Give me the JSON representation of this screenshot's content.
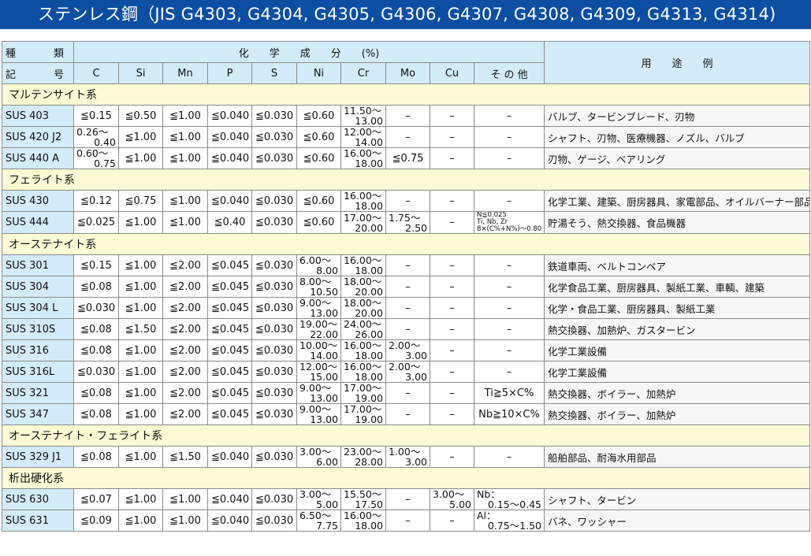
{
  "title": "ステンレス鋼（JIS G4303, G4304, G4305, G4306, G4307, G4308, G4309, G4313, G4314)",
  "header": {
    "grade_top": [
      "種",
      "類"
    ],
    "grade_bottom": [
      "記",
      "号"
    ],
    "chem": "化　　学　　成　　分　　(%)",
    "use": "用　　途　　例",
    "elements": [
      "C",
      "Si",
      "Mn",
      "P",
      "S",
      "Ni",
      "Cr",
      "Mo",
      "Cu",
      "そ の 他"
    ]
  },
  "colors": {
    "title_bg": "#0b4ea2",
    "header_bg": "#d3ecf9",
    "group_bg": "#fdfad6"
  },
  "groups": [
    {
      "name": "マルテンサイト系",
      "rows": [
        {
          "grade": "SUS 403",
          "vals": [
            "≦0.15",
            "≦0.50",
            "≦1.00",
            "≦0.040",
            "≦0.030",
            "≦0.60",
            [
              "11.50～",
              "13.00"
            ],
            "–",
            "–",
            "–"
          ],
          "use": "バルブ、タービンブレード、刃物"
        },
        {
          "grade": "SUS 420 J2",
          "vals": [
            [
              "0.26～",
              "0.40"
            ],
            "≦1.00",
            "≦1.00",
            "≦0.040",
            "≦0.030",
            "≦0.60",
            [
              "12.00～",
              "14.00"
            ],
            "–",
            "–",
            "–"
          ],
          "use": "シャフト、刃物、医療機器、ノズル、バルブ"
        },
        {
          "grade": "SUS 440 A",
          "vals": [
            [
              "0.60～",
              "0.75"
            ],
            "≦1.00",
            "≦1.00",
            "≦0.040",
            "≦0.030",
            "≦0.60",
            [
              "16.00～",
              "18.00"
            ],
            "≦0.75",
            "–",
            "–"
          ],
          "use": "刃物、ゲージ、ベアリング"
        }
      ]
    },
    {
      "name": "フェライト系",
      "rows": [
        {
          "grade": "SUS 430",
          "vals": [
            "≦0.12",
            "≦0.75",
            "≦1.00",
            "≦0.040",
            "≦0.030",
            "≦0.60",
            [
              "16.00～",
              "18.00"
            ],
            "–",
            "–",
            "–"
          ],
          "use": "化学工業、建築、厨房器具、家電部品、オイルバーナー部品"
        },
        {
          "grade": "SUS 444",
          "vals": [
            "≦0.025",
            "≦1.00",
            "≦1.00",
            "≦0.40",
            "≦0.030",
            "≦0.60",
            [
              "17.00～",
              "20.00"
            ],
            [
              "1.75～",
              "2.50"
            ],
            "–",
            {
              "small": [
                "N≦0.025",
                "Ti, Nb, Zr",
                "8×(C%+N%)～0.80"
              ]
            }
          ],
          "use": "貯湯そう、熱交換器、食品機器"
        }
      ]
    },
    {
      "name": "オーステナイト系",
      "rows": [
        {
          "grade": "SUS 301",
          "vals": [
            "≦0.15",
            "≦1.00",
            "≦2.00",
            "≦0.045",
            "≦0.030",
            [
              "6.00～",
              "8.00"
            ],
            [
              "16.00～",
              "18.00"
            ],
            "–",
            "–",
            "–"
          ],
          "use": "鉄道車両、ベルトコンベア"
        },
        {
          "grade": "SUS 304",
          "vals": [
            "≦0.08",
            "≦1.00",
            "≦2.00",
            "≦0.045",
            "≦0.030",
            [
              "8.00～",
              "10.50"
            ],
            [
              "18.00～",
              "20.00"
            ],
            "–",
            "–",
            "–"
          ],
          "use": "化学食品工業、厨房器具、製紙工業、車輌、建築"
        },
        {
          "grade": "SUS 304 L",
          "vals": [
            "≦0.030",
            "≦1.00",
            "≦2.00",
            "≦0.045",
            "≦0.030",
            [
              "9.00～",
              "13.00"
            ],
            [
              "18.00～",
              "20.00"
            ],
            "–",
            "–",
            "–"
          ],
          "use": "化学・食品工業、厨房器具、製紙工業"
        },
        {
          "grade": "SUS 310S",
          "vals": [
            "≦0.08",
            "≦1.50",
            "≦2.00",
            "≦0.045",
            "≦0.030",
            [
              "19.00～",
              "22.00"
            ],
            [
              "24.00～",
              "26.00"
            ],
            "–",
            "–",
            "–"
          ],
          "use": "熱交換器、加熱炉、ガスタービン"
        },
        {
          "grade": "SUS 316",
          "vals": [
            "≦0.08",
            "≦1.00",
            "≦2.00",
            "≦0.045",
            "≦0.030",
            [
              "10.00～",
              "14.00"
            ],
            [
              "16.00～",
              "18.00"
            ],
            [
              "2.00～",
              "3.00"
            ],
            "–",
            "–"
          ],
          "use": "化学工業設備"
        },
        {
          "grade": "SUS 316L",
          "vals": [
            "≦0.030",
            "≦1.00",
            "≦2.00",
            "≦0.045",
            "≦0.030",
            [
              "12.00～",
              "15.00"
            ],
            [
              "16.00～",
              "18.00"
            ],
            [
              "2.00～",
              "3.00"
            ],
            "–",
            "–"
          ],
          "use": "化学工業設備"
        },
        {
          "grade": "SUS 321",
          "vals": [
            "≦0.08",
            "≦1.00",
            "≦2.00",
            "≦0.045",
            "≦0.030",
            [
              "9.00～",
              "13.00"
            ],
            [
              "17.00～",
              "19.00"
            ],
            "–",
            "–",
            "Ti≧5×C%"
          ],
          "use": "熱交換器、ボイラー、加熱炉"
        },
        {
          "grade": "SUS 347",
          "vals": [
            "≦0.08",
            "≦1.00",
            "≦2.00",
            "≦0.045",
            "≦0.030",
            [
              "9.00～",
              "13.00"
            ],
            [
              "17.00～",
              "19.00"
            ],
            "–",
            "–",
            "Nb≧10×C%"
          ],
          "use": "熱交換器、ボイラー、加熱炉"
        }
      ]
    },
    {
      "name": "オーステナイト・フェライト系",
      "rows": [
        {
          "grade": "SUS 329 J1",
          "vals": [
            "≦0.08",
            "≦1.00",
            "≦1.50",
            "≦0.040",
            "≦0.030",
            [
              "3.00～",
              "6.00"
            ],
            [
              "23.00～",
              "28.00"
            ],
            [
              "1.00～",
              "3.00"
            ],
            "–",
            "–"
          ],
          "use": "船舶部品、耐海水用部品"
        }
      ]
    },
    {
      "name": "析出硬化系",
      "rows": [
        {
          "grade": "SUS 630",
          "vals": [
            "≦0.07",
            "≦1.00",
            "≦1.00",
            "≦0.040",
            "≦0.030",
            [
              "3.00～",
              "5.00"
            ],
            [
              "15.50～",
              "17.50"
            ],
            "–",
            [
              "3.00～",
              "5.00"
            ],
            [
              "Nb：",
              "0.15～0.45"
            ]
          ],
          "use": "シャフト、タービン"
        },
        {
          "grade": "SUS 631",
          "vals": [
            "≦0.09",
            "≦1.00",
            "≦1.00",
            "≦0.040",
            "≦0.030",
            [
              "6.50～",
              "7.75"
            ],
            [
              "16.00～",
              "18.00"
            ],
            "–",
            "–",
            [
              "Al：",
              "0.75～1.50"
            ]
          ],
          "use": "バネ、ワッシャー"
        }
      ]
    }
  ]
}
